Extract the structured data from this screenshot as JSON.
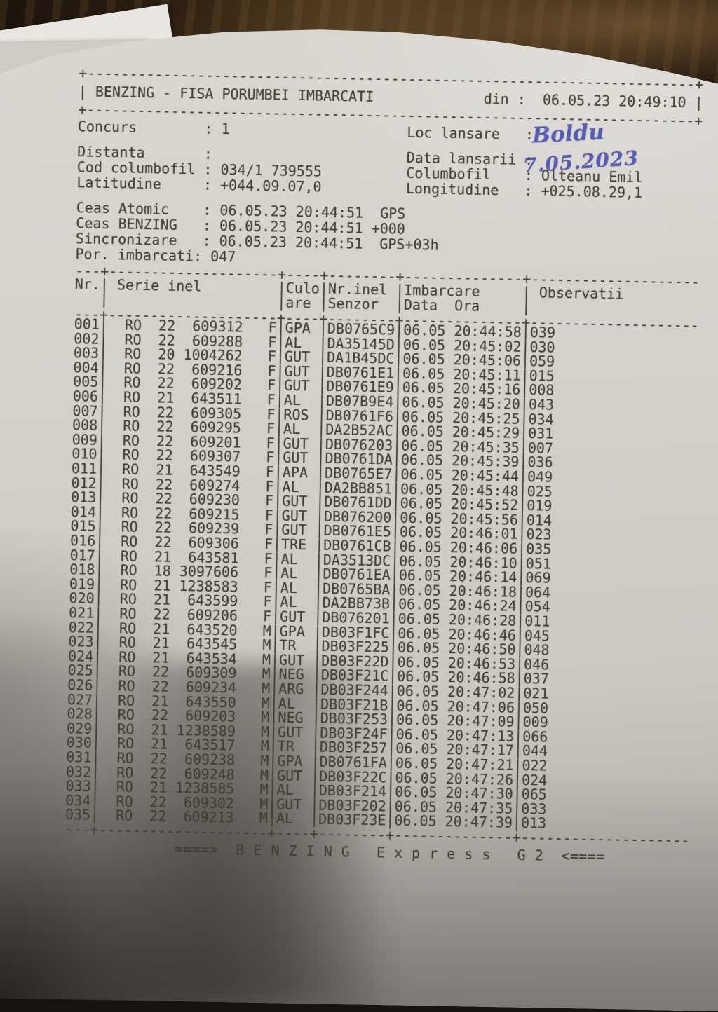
{
  "colors": {
    "paper": "#d4d1cb",
    "ink": "#423b32",
    "handwriting_blue": "#565cb8",
    "wood_table": "#2c1e11"
  },
  "document": {
    "header": {
      "title": "BENZING - FISA PORUMBEI IMBARCATI",
      "din_label": "din :",
      "printed_at": "06.05.23 20:49:10"
    },
    "info": {
      "lines": [
        {
          "left_label": "Concurs",
          "left_value": "1",
          "right_label": "Loc lansare",
          "right_value": ""
        },
        {
          "left_label": "Distanta",
          "left_value": "",
          "right_label": "Data lansarii",
          "right_value": ""
        },
        {
          "left_label": "Cod columbofil",
          "left_value": "034/1 739555",
          "right_label": "Columbofil",
          "right_value": "Olteanu Emil"
        },
        {
          "left_label": "Latitudine",
          "left_value": "+044.09.07,0",
          "right_label": "Longitudine",
          "right_value": "+025.08.29,1"
        }
      ],
      "loc_lansare_handwritten": "Boldu",
      "data_lansarii_handwritten": "7.05.2023"
    },
    "clocks": {
      "lines": [
        {
          "label": "Ceas Atomic",
          "value": "06.05.23 20:44:51  GPS"
        },
        {
          "label": "Ceas BENZING",
          "value": "06.05.23 20:44:51 +000"
        },
        {
          "label": "Sincronizare",
          "value": "06.05.23 20:44:51  GPS+03h"
        }
      ],
      "por_label": "Por. imbarcati",
      "por_value": "047"
    },
    "table": {
      "country": "RO",
      "columns": {
        "nr": "Nr.",
        "serie": "Serie inel",
        "culoare_1": "Culo",
        "culoare_2": "are",
        "senzor_1": "Nr.inel",
        "senzor_2": "Senzor",
        "imbarcare_1": "Imbarcare",
        "imbarcare_2": "Data  Ora",
        "observatii": "Observatii"
      },
      "rows": [
        [
          "001",
          "22",
          "609312",
          "F",
          "GPA",
          "DB0765C9",
          "06.05",
          "20:44:58",
          "039"
        ],
        [
          "002",
          "22",
          "609288",
          "F",
          "AL",
          "DA35145D",
          "06.05",
          "20:45:02",
          "030"
        ],
        [
          "003",
          "20",
          "1004262",
          "F",
          "GUT",
          "DA1B45DC",
          "06.05",
          "20:45:06",
          "059"
        ],
        [
          "004",
          "22",
          "609216",
          "F",
          "GUT",
          "DB0761E1",
          "06.05",
          "20:45:11",
          "015"
        ],
        [
          "005",
          "22",
          "609202",
          "F",
          "GUT",
          "DB0761E9",
          "06.05",
          "20:45:16",
          "008"
        ],
        [
          "006",
          "21",
          "643511",
          "F",
          "AL",
          "DB07B9E4",
          "06.05",
          "20:45:20",
          "043"
        ],
        [
          "007",
          "22",
          "609305",
          "F",
          "ROS",
          "DB0761F6",
          "06.05",
          "20:45:25",
          "034"
        ],
        [
          "008",
          "22",
          "609295",
          "F",
          "AL",
          "DA2B52AC",
          "06.05",
          "20:45:29",
          "031"
        ],
        [
          "009",
          "22",
          "609201",
          "F",
          "GUT",
          "DB076203",
          "06.05",
          "20:45:35",
          "007"
        ],
        [
          "010",
          "22",
          "609307",
          "F",
          "GUT",
          "DB0761DA",
          "06.05",
          "20:45:39",
          "036"
        ],
        [
          "011",
          "21",
          "643549",
          "F",
          "APA",
          "DB0765E7",
          "06.05",
          "20:45:44",
          "049"
        ],
        [
          "012",
          "22",
          "609274",
          "F",
          "AL",
          "DA2BB851",
          "06.05",
          "20:45:48",
          "025"
        ],
        [
          "013",
          "22",
          "609230",
          "F",
          "GUT",
          "DB0761DD",
          "06.05",
          "20:45:52",
          "019"
        ],
        [
          "014",
          "22",
          "609215",
          "F",
          "GUT",
          "DB076200",
          "06.05",
          "20:45:56",
          "014"
        ],
        [
          "015",
          "22",
          "609239",
          "F",
          "GUT",
          "DB0761E5",
          "06.05",
          "20:46:01",
          "023"
        ],
        [
          "016",
          "22",
          "609306",
          "F",
          "TRE",
          "DB0761CB",
          "06.05",
          "20:46:06",
          "035"
        ],
        [
          "017",
          "21",
          "643581",
          "F",
          "AL",
          "DA3513DC",
          "06.05",
          "20:46:10",
          "051"
        ],
        [
          "018",
          "18",
          "3097606",
          "F",
          "AL",
          "DB0761EA",
          "06.05",
          "20:46:14",
          "069"
        ],
        [
          "019",
          "21",
          "1238583",
          "F",
          "AL",
          "DB0765BA",
          "06.05",
          "20:46:18",
          "064"
        ],
        [
          "020",
          "21",
          "643599",
          "F",
          "AL",
          "DA2BB73B",
          "06.05",
          "20:46:24",
          "054"
        ],
        [
          "021",
          "22",
          "609206",
          "F",
          "GUT",
          "DB076201",
          "06.05",
          "20:46:28",
          "011"
        ],
        [
          "022",
          "21",
          "643520",
          "M",
          "GPA",
          "DB03F1FC",
          "06.05",
          "20:46:46",
          "045"
        ],
        [
          "023",
          "21",
          "643545",
          "M",
          "TR",
          "DB03F225",
          "06.05",
          "20:46:50",
          "048"
        ],
        [
          "024",
          "21",
          "643534",
          "M",
          "GUT",
          "DB03F22D",
          "06.05",
          "20:46:53",
          "046"
        ],
        [
          "025",
          "22",
          "609309",
          "M",
          "NEG",
          "DB03F21C",
          "06.05",
          "20:46:58",
          "037"
        ],
        [
          "026",
          "22",
          "609234",
          "M",
          "ARG",
          "DB03F244",
          "06.05",
          "20:47:02",
          "021"
        ],
        [
          "027",
          "21",
          "643550",
          "M",
          "AL",
          "DB03F21B",
          "06.05",
          "20:47:06",
          "050"
        ],
        [
          "028",
          "22",
          "609203",
          "M",
          "NEG",
          "DB03F253",
          "06.05",
          "20:47:09",
          "009"
        ],
        [
          "029",
          "21",
          "1238589",
          "M",
          "GUT",
          "DB03F24F",
          "06.05",
          "20:47:13",
          "066"
        ],
        [
          "030",
          "21",
          "643517",
          "M",
          "TR",
          "DB03F257",
          "06.05",
          "20:47:17",
          "044"
        ],
        [
          "031",
          "22",
          "609238",
          "M",
          "GPA",
          "DB0761FA",
          "06.05",
          "20:47:21",
          "022"
        ],
        [
          "032",
          "22",
          "609248",
          "M",
          "GUT",
          "DB03F22C",
          "06.05",
          "20:47:26",
          "024"
        ],
        [
          "033",
          "21",
          "1238585",
          "M",
          "AL",
          "DB03F214",
          "06.05",
          "20:47:30",
          "065"
        ],
        [
          "034",
          "22",
          "609302",
          "M",
          "GUT",
          "DB03F202",
          "06.05",
          "20:47:35",
          "033"
        ],
        [
          "035",
          "22",
          "609213",
          "M",
          "AL",
          "DB03F23E",
          "06.05",
          "20:47:39",
          "013"
        ]
      ]
    },
    "footer": "====>  B E N Z I N G   E x p r e s s   G 2  <===="
  }
}
